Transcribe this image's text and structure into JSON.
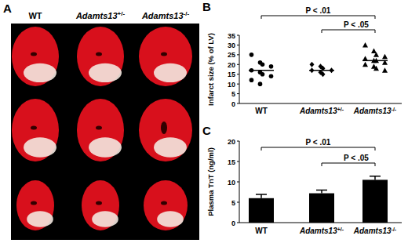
{
  "panel_letters": [
    "A",
    "B",
    "C"
  ],
  "panel_a": {
    "labels": [
      "WT",
      "Adamts13+/-",
      "Adamts13-/-"
    ]
  },
  "chart_data": [
    {
      "type": "scatter",
      "y_label": "Infarct size (% of LV)",
      "series": [
        {
          "name": "WT",
          "marker": "circle",
          "color": "#000000",
          "values": [
            25,
            21,
            20,
            19,
            17,
            16,
            15,
            14,
            12,
            10
          ],
          "mean": 17
        },
        {
          "name": "Adamts13+/-",
          "marker": "diamond",
          "color": "#000000",
          "values": [
            20,
            19,
            18,
            17,
            17,
            16,
            15
          ],
          "mean": 17
        },
        {
          "name": "Adamts13-/-",
          "marker": "triangle",
          "color": "#000000",
          "values": [
            30,
            27,
            25,
            24,
            23,
            22,
            22,
            21,
            20,
            19,
            18,
            17
          ],
          "mean": 22
        }
      ],
      "ylim": [
        0,
        35
      ],
      "yticks": [
        0,
        5,
        10,
        15,
        20,
        25,
        30,
        35
      ],
      "annotations": [
        {
          "text": "P < .01",
          "between": [
            "WT",
            "Adamts13-/-"
          ]
        },
        {
          "text": "P < .05",
          "between": [
            "Adamts13+/-",
            "Adamts13-/-"
          ]
        }
      ]
    },
    {
      "type": "bar",
      "y_label": "Plasma TnT (ng/ml)",
      "categories": [
        "WT",
        "Adamts13+/-",
        "Adamts13-/-"
      ],
      "values": [
        6,
        7.2,
        10.5
      ],
      "errors": [
        0.9,
        0.8,
        0.9
      ],
      "color": "#000000",
      "ylim": [
        0,
        20
      ],
      "yticks": [
        0,
        5,
        10,
        15,
        20
      ],
      "annotations": [
        {
          "text": "P < .01",
          "between": [
            "WT",
            "Adamts13-/-"
          ]
        },
        {
          "text": "P < .05",
          "between": [
            "Adamts13+/-",
            "Adamts13-/-"
          ]
        }
      ]
    }
  ]
}
